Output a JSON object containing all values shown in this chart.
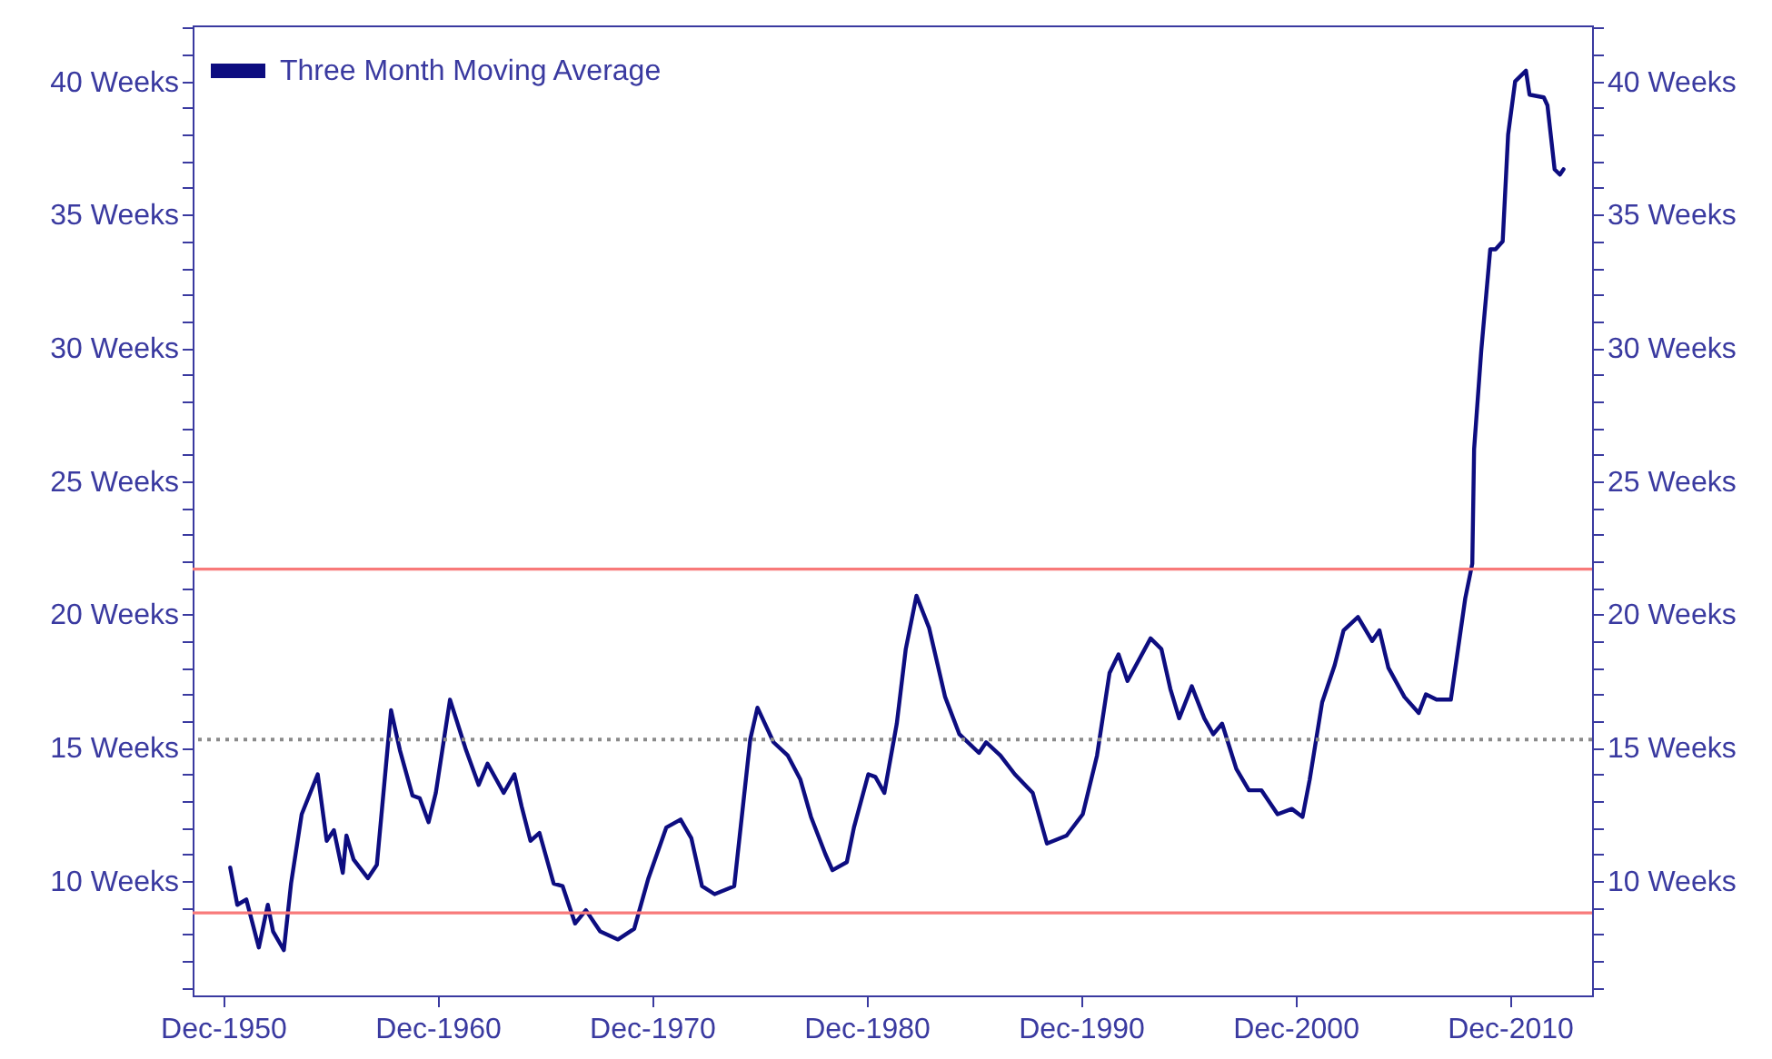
{
  "chart_data": {
    "type": "line",
    "x": [
      "1951-04",
      "1951-08",
      "1952-01",
      "1952-08",
      "1953-01",
      "1953-04",
      "1953-10",
      "1954-02",
      "1954-08",
      "1955-05",
      "1955-10",
      "1956-02",
      "1956-07",
      "1956-09",
      "1957-01",
      "1957-09",
      "1958-02",
      "1958-10",
      "1959-03",
      "1959-10",
      "1960-02",
      "1960-07",
      "1960-11",
      "1961-07",
      "1962-04",
      "1962-11",
      "1963-04",
      "1964-01",
      "1964-07",
      "1964-11",
      "1965-04",
      "1965-09",
      "1966-05",
      "1966-10",
      "1967-05",
      "1967-11",
      "1968-07",
      "1969-05",
      "1970-02",
      "1970-10",
      "1971-08",
      "1972-04",
      "1972-10",
      "1973-04",
      "1973-11",
      "1974-10",
      "1975-07",
      "1975-11",
      "1976-08",
      "1977-04",
      "1977-11",
      "1978-05",
      "1979-01",
      "1979-05",
      "1980-01",
      "1980-05",
      "1981-01",
      "1981-05",
      "1981-10",
      "1982-05",
      "1982-10",
      "1983-04",
      "1983-11",
      "1984-08",
      "1985-04",
      "1986-03",
      "1986-07",
      "1987-03",
      "1987-11",
      "1988-09",
      "1989-05",
      "1990-04",
      "1991-01",
      "1991-09",
      "1992-04",
      "1992-09",
      "1993-02",
      "1994-03",
      "1994-09",
      "1995-02",
      "1995-07",
      "1996-02",
      "1996-09",
      "1997-02",
      "1997-07",
      "1998-03",
      "1998-10",
      "1999-05",
      "2000-02",
      "2000-10",
      "2001-04",
      "2001-08",
      "2002-03",
      "2002-10",
      "2003-03",
      "2003-11",
      "2004-07",
      "2004-11",
      "2005-04",
      "2006-01",
      "2006-09",
      "2007-01",
      "2007-07",
      "2008-03",
      "2008-07",
      "2008-11",
      "2009-03",
      "2009-04",
      "2009-08",
      "2010-01",
      "2010-04",
      "2010-08",
      "2010-11",
      "2011-03",
      "2011-09",
      "2011-11",
      "2012-07",
      "2012-09",
      "2013-01",
      "2013-04",
      "2013-06"
    ],
    "series": [
      {
        "name": "Three Month Moving Average",
        "color": "#0d0d80",
        "values": [
          10.5,
          9.1,
          9.3,
          7.5,
          9.1,
          8.1,
          7.4,
          9.9,
          12.5,
          14.0,
          11.5,
          11.9,
          10.3,
          11.7,
          10.8,
          10.1,
          10.6,
          16.4,
          14.9,
          13.2,
          13.1,
          12.2,
          13.3,
          16.8,
          14.9,
          13.6,
          14.4,
          13.3,
          14.0,
          12.8,
          11.5,
          11.8,
          9.9,
          9.8,
          8.4,
          8.9,
          8.1,
          7.8,
          8.2,
          10.1,
          12.0,
          12.3,
          11.6,
          9.8,
          9.5,
          9.8,
          15.3,
          16.5,
          15.2,
          14.7,
          13.8,
          12.4,
          11.0,
          10.4,
          10.7,
          12.0,
          14.0,
          13.9,
          13.3,
          15.9,
          18.7,
          20.7,
          19.5,
          16.9,
          15.5,
          14.8,
          15.2,
          14.7,
          14.0,
          13.3,
          11.4,
          11.7,
          12.5,
          14.7,
          17.8,
          18.5,
          17.5,
          19.1,
          18.7,
          17.2,
          16.1,
          17.3,
          16.1,
          15.5,
          15.9,
          14.2,
          13.4,
          13.4,
          12.5,
          12.7,
          12.4,
          13.8,
          16.7,
          18.1,
          19.4,
          19.9,
          19.0,
          19.4,
          18.0,
          16.9,
          16.3,
          17.0,
          16.8,
          16.8,
          18.7,
          20.6,
          21.9,
          26.2,
          29.9,
          33.7,
          33.7,
          34.0,
          38.0,
          40.0,
          40.4,
          39.5,
          39.4,
          39.1,
          36.7,
          36.5,
          36.7
        ]
      }
    ],
    "xlim": [
      "1949-07",
      "2014-10"
    ],
    "xticks": [
      {
        "value": "1950-12",
        "label": "Dec-1950"
      },
      {
        "value": "1960-12",
        "label": "Dec-1960"
      },
      {
        "value": "1970-12",
        "label": "Dec-1970"
      },
      {
        "value": "1980-12",
        "label": "Dec-1980"
      },
      {
        "value": "1990-12",
        "label": "Dec-1990"
      },
      {
        "value": "2000-12",
        "label": "Dec-2000"
      },
      {
        "value": "2010-12",
        "label": "Dec-2010"
      }
    ],
    "ylim": [
      5.7,
      42.1
    ],
    "yticks": [
      {
        "value": 6,
        "label": null
      },
      {
        "value": 7,
        "label": null
      },
      {
        "value": 8,
        "label": null
      },
      {
        "value": 9,
        "label": null
      },
      {
        "value": 10,
        "label": "10 Weeks"
      },
      {
        "value": 11,
        "label": null
      },
      {
        "value": 12,
        "label": null
      },
      {
        "value": 13,
        "label": null
      },
      {
        "value": 14,
        "label": null
      },
      {
        "value": 15,
        "label": "15 Weeks"
      },
      {
        "value": 16,
        "label": null
      },
      {
        "value": 17,
        "label": null
      },
      {
        "value": 18,
        "label": null
      },
      {
        "value": 19,
        "label": null
      },
      {
        "value": 20,
        "label": "20 Weeks"
      },
      {
        "value": 21,
        "label": null
      },
      {
        "value": 22,
        "label": null
      },
      {
        "value": 23,
        "label": null
      },
      {
        "value": 24,
        "label": null
      },
      {
        "value": 25,
        "label": "25 Weeks"
      },
      {
        "value": 26,
        "label": null
      },
      {
        "value": 27,
        "label": null
      },
      {
        "value": 28,
        "label": null
      },
      {
        "value": 29,
        "label": null
      },
      {
        "value": 30,
        "label": "30 Weeks"
      },
      {
        "value": 31,
        "label": null
      },
      {
        "value": 32,
        "label": null
      },
      {
        "value": 33,
        "label": null
      },
      {
        "value": 34,
        "label": null
      },
      {
        "value": 35,
        "label": "35 Weeks"
      },
      {
        "value": 36,
        "label": null
      },
      {
        "value": 37,
        "label": null
      },
      {
        "value": 38,
        "label": null
      },
      {
        "value": 39,
        "label": null
      },
      {
        "value": 40,
        "label": "40 Weeks"
      },
      {
        "value": 41,
        "label": null
      },
      {
        "value": 42,
        "label": null
      }
    ],
    "y2lim": [
      5.7,
      42.1
    ],
    "y2ticks": [
      {
        "value": 6,
        "label": null
      },
      {
        "value": 7,
        "label": null
      },
      {
        "value": 8,
        "label": null
      },
      {
        "value": 9,
        "label": null
      },
      {
        "value": 10,
        "label": "10 Weeks"
      },
      {
        "value": 11,
        "label": null
      },
      {
        "value": 12,
        "label": null
      },
      {
        "value": 13,
        "label": null
      },
      {
        "value": 14,
        "label": null
      },
      {
        "value": 15,
        "label": "15 Weeks"
      },
      {
        "value": 16,
        "label": null
      },
      {
        "value": 17,
        "label": null
      },
      {
        "value": 18,
        "label": null
      },
      {
        "value": 19,
        "label": null
      },
      {
        "value": 20,
        "label": "20 Weeks"
      },
      {
        "value": 21,
        "label": null
      },
      {
        "value": 22,
        "label": null
      },
      {
        "value": 23,
        "label": null
      },
      {
        "value": 24,
        "label": null
      },
      {
        "value": 25,
        "label": "25 Weeks"
      },
      {
        "value": 26,
        "label": null
      },
      {
        "value": 27,
        "label": null
      },
      {
        "value": 28,
        "label": null
      },
      {
        "value": 29,
        "label": null
      },
      {
        "value": 30,
        "label": "30 Weeks"
      },
      {
        "value": 31,
        "label": null
      },
      {
        "value": 32,
        "label": null
      },
      {
        "value": 33,
        "label": null
      },
      {
        "value": 34,
        "label": null
      },
      {
        "value": 35,
        "label": "35 Weeks"
      },
      {
        "value": 36,
        "label": null
      },
      {
        "value": 37,
        "label": null
      },
      {
        "value": 38,
        "label": null
      },
      {
        "value": 39,
        "label": null
      },
      {
        "value": 40,
        "label": "40 Weeks"
      },
      {
        "value": 41,
        "label": null
      },
      {
        "value": 42,
        "label": null
      }
    ],
    "ref_lines": [
      {
        "axis": "y",
        "value": 21.7,
        "color": "#f87a7a",
        "line_style": "solid"
      },
      {
        "axis": "y",
        "value": 15.3,
        "color": "#8a8a8a",
        "line_style": "dotted"
      },
      {
        "axis": "y",
        "value": 8.8,
        "color": "#f87a7a",
        "line_style": "solid"
      }
    ],
    "grid": false,
    "legend": "top left"
  }
}
